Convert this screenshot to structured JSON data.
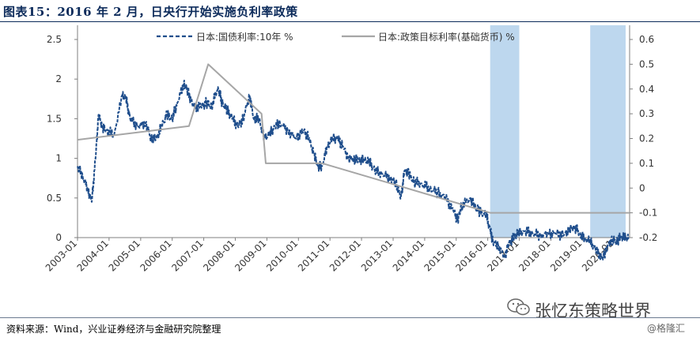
{
  "header": {
    "title": "图表15：2016 年 2 月，日央行开始实施负利率政策"
  },
  "footer": {
    "source": "资料来源：Wind，兴业证券经济与金融研究院整理",
    "brand": "张忆东策略世界",
    "watermark": "@格隆汇"
  },
  "colors": {
    "jgb": "#1f4e8c",
    "policy": "#a6a6a6",
    "shade": "#bdd7ee",
    "axis": "#7f7f7f"
  },
  "icons": {
    "brand": "wechat-icon"
  },
  "chart_data": {
    "type": "line",
    "title": "",
    "xlabel": "",
    "ylabel": "",
    "x_ticks": [
      "2003-01",
      "2004-01",
      "2005-01",
      "2006-01",
      "2007-01",
      "2008-01",
      "2009-01",
      "2010-01",
      "2011-01",
      "2012-01",
      "2013-01",
      "2014-01",
      "2015-01",
      "2016-01",
      "2017-01",
      "2018-01",
      "2019-01",
      "2020-01"
    ],
    "xlim": [
      "2003-01-01",
      "2020-06-30"
    ],
    "ylim_left": [
      0,
      2.5
    ],
    "yticks_left": [
      "0",
      "0.5",
      "1",
      "1.5",
      "2",
      "2.5"
    ],
    "ylim_right": [
      -0.2,
      0.6
    ],
    "yticks_right": [
      "-0.2",
      "-0.1",
      "0",
      "0.1",
      "0.2",
      "0.3",
      "0.4",
      "0.5",
      "0.6"
    ],
    "grid": false,
    "legend_position": "top",
    "shaded_periods": [
      {
        "start": "2016-01-29",
        "end": "2016-12-31"
      },
      {
        "start": "2019-04-01",
        "end": "2020-05-15"
      }
    ],
    "series": [
      {
        "name": "日本:国债利率:10年 %",
        "axis": "left",
        "style": "dashed",
        "points": [
          [
            "2003-01-01",
            0.9
          ],
          [
            "2003-03-01",
            0.78
          ],
          [
            "2003-05-01",
            0.6
          ],
          [
            "2003-06-15",
            0.45
          ],
          [
            "2003-08-01",
            1.05
          ],
          [
            "2003-09-01",
            1.55
          ],
          [
            "2003-10-15",
            1.4
          ],
          [
            "2003-12-01",
            1.35
          ],
          [
            "2004-03-01",
            1.3
          ],
          [
            "2004-06-01",
            1.8
          ],
          [
            "2004-07-15",
            1.75
          ],
          [
            "2004-09-01",
            1.5
          ],
          [
            "2004-12-01",
            1.4
          ],
          [
            "2005-03-01",
            1.45
          ],
          [
            "2005-05-01",
            1.25
          ],
          [
            "2005-07-01",
            1.25
          ],
          [
            "2005-09-01",
            1.4
          ],
          [
            "2005-11-01",
            1.55
          ],
          [
            "2006-01-01",
            1.5
          ],
          [
            "2006-03-01",
            1.7
          ],
          [
            "2006-05-15",
            1.95
          ],
          [
            "2006-07-01",
            1.85
          ],
          [
            "2006-09-01",
            1.65
          ],
          [
            "2006-12-01",
            1.65
          ],
          [
            "2007-02-01",
            1.7
          ],
          [
            "2007-04-01",
            1.65
          ],
          [
            "2007-06-15",
            1.9
          ],
          [
            "2007-08-01",
            1.7
          ],
          [
            "2007-10-01",
            1.6
          ],
          [
            "2007-12-01",
            1.5
          ],
          [
            "2008-02-01",
            1.4
          ],
          [
            "2008-04-01",
            1.5
          ],
          [
            "2008-06-15",
            1.8
          ],
          [
            "2008-08-01",
            1.5
          ],
          [
            "2008-10-01",
            1.5
          ],
          [
            "2008-12-01",
            1.25
          ],
          [
            "2009-02-01",
            1.3
          ],
          [
            "2009-04-01",
            1.4
          ],
          [
            "2009-06-01",
            1.45
          ],
          [
            "2009-09-01",
            1.35
          ],
          [
            "2009-12-01",
            1.25
          ],
          [
            "2010-03-01",
            1.35
          ],
          [
            "2010-05-01",
            1.25
          ],
          [
            "2010-07-01",
            1.05
          ],
          [
            "2010-08-15",
            0.9
          ],
          [
            "2010-10-01",
            0.9
          ],
          [
            "2010-12-01",
            1.15
          ],
          [
            "2011-02-01",
            1.25
          ],
          [
            "2011-04-01",
            1.25
          ],
          [
            "2011-06-01",
            1.15
          ],
          [
            "2011-08-01",
            1.0
          ],
          [
            "2011-10-01",
            1.0
          ],
          [
            "2011-12-01",
            0.98
          ],
          [
            "2012-02-01",
            0.98
          ],
          [
            "2012-04-01",
            0.95
          ],
          [
            "2012-06-01",
            0.85
          ],
          [
            "2012-09-01",
            0.8
          ],
          [
            "2012-12-01",
            0.75
          ],
          [
            "2013-02-01",
            0.7
          ],
          [
            "2013-04-01",
            0.5
          ],
          [
            "2013-05-15",
            0.85
          ],
          [
            "2013-07-01",
            0.8
          ],
          [
            "2013-09-01",
            0.7
          ],
          [
            "2013-12-01",
            0.68
          ],
          [
            "2014-03-01",
            0.62
          ],
          [
            "2014-06-01",
            0.57
          ],
          [
            "2014-09-01",
            0.5
          ],
          [
            "2014-12-01",
            0.33
          ],
          [
            "2015-01-20",
            0.22
          ],
          [
            "2015-03-01",
            0.4
          ],
          [
            "2015-06-15",
            0.5
          ],
          [
            "2015-08-01",
            0.4
          ],
          [
            "2015-10-01",
            0.32
          ],
          [
            "2015-12-15",
            0.28
          ],
          [
            "2016-01-29",
            0.1
          ],
          [
            "2016-03-01",
            -0.05
          ],
          [
            "2016-05-01",
            -0.1
          ],
          [
            "2016-07-15",
            -0.25
          ],
          [
            "2016-09-01",
            -0.07
          ],
          [
            "2016-11-01",
            0.0
          ],
          [
            "2016-12-15",
            0.05
          ],
          [
            "2017-03-01",
            0.08
          ],
          [
            "2017-06-01",
            0.06
          ],
          [
            "2017-09-01",
            0.03
          ],
          [
            "2017-12-01",
            0.05
          ],
          [
            "2018-03-01",
            0.05
          ],
          [
            "2018-06-01",
            0.03
          ],
          [
            "2018-08-01",
            0.1
          ],
          [
            "2018-10-01",
            0.14
          ],
          [
            "2018-12-01",
            0.05
          ],
          [
            "2019-02-01",
            -0.02
          ],
          [
            "2019-04-01",
            -0.05
          ],
          [
            "2019-06-01",
            -0.15
          ],
          [
            "2019-08-20",
            -0.27
          ],
          [
            "2019-10-01",
            -0.15
          ],
          [
            "2019-12-01",
            -0.02
          ],
          [
            "2020-02-01",
            -0.05
          ],
          [
            "2020-03-20",
            0.01
          ],
          [
            "2020-05-01",
            0.0
          ],
          [
            "2020-06-15",
            -0.02
          ]
        ]
      },
      {
        "name": "日本:政策目标利率(基础货币) %",
        "axis": "right",
        "style": "solid",
        "points": [
          [
            "2003-01-01",
            0.195
          ],
          [
            "2006-07-14",
            0.25
          ],
          [
            "2007-02-21",
            0.5
          ],
          [
            "2008-10-31",
            0.3
          ],
          [
            "2008-12-19",
            0.1
          ],
          [
            "2010-10-05",
            0.1
          ],
          [
            "2016-01-29",
            -0.1
          ],
          [
            "2020-06-30",
            -0.1
          ]
        ]
      }
    ]
  }
}
